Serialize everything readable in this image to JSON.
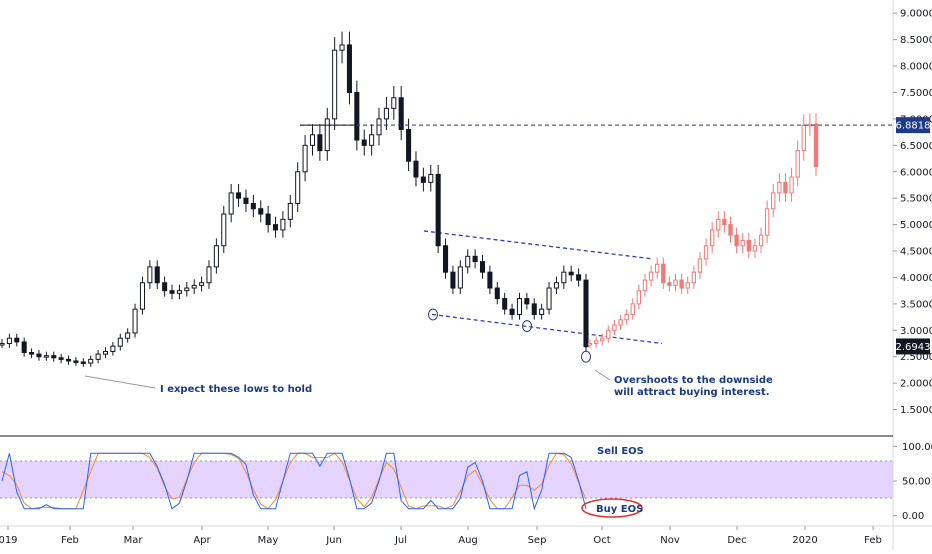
{
  "chart_data": {
    "type": "candlestick",
    "price_panel": {
      "ylim": [
        1.0,
        9.25
      ],
      "y_ticks": [
        "9.0000",
        "8.5000",
        "8.0000",
        "7.5000",
        "7.0000",
        "6.5000",
        "6.0000",
        "5.5000",
        "5.0000",
        "4.5000",
        "4.0000",
        "3.5000",
        "3.0000",
        "2.5000",
        "2.0000",
        "1.5000"
      ],
      "current_price_label": "2.6943",
      "target_price_label": "6.8818",
      "target_price": 6.8818,
      "current_price": 2.6943,
      "actual_series": [
        2.75,
        2.85,
        2.78,
        2.58,
        2.55,
        2.5,
        2.52,
        2.48,
        2.45,
        2.42,
        2.4,
        2.38,
        2.45,
        2.55,
        2.6,
        2.7,
        2.85,
        2.95,
        3.4,
        3.9,
        4.2,
        3.9,
        3.75,
        3.7,
        3.75,
        3.8,
        3.85,
        3.9,
        4.2,
        4.6,
        5.2,
        5.6,
        5.5,
        5.4,
        5.3,
        5.2,
        5.0,
        4.9,
        5.1,
        5.4,
        6.0,
        6.5,
        6.7,
        6.4,
        7.0,
        8.3,
        8.4,
        7.5,
        6.6,
        6.5,
        6.7,
        7.0,
        7.2,
        7.4,
        6.8,
        6.2,
        5.9,
        5.8,
        5.95,
        4.6,
        4.1,
        3.8,
        4.2,
        4.4,
        4.3,
        4.1,
        3.8,
        3.6,
        3.4,
        3.3,
        3.6,
        3.5,
        3.3,
        3.4,
        3.8,
        3.9,
        4.1,
        4.05,
        3.95,
        2.69
      ],
      "projected_series": [
        2.75,
        2.8,
        2.85,
        3.0,
        3.1,
        3.2,
        3.3,
        3.5,
        3.75,
        3.95,
        4.1,
        4.25,
        3.9,
        3.85,
        3.95,
        3.8,
        3.9,
        4.1,
        4.35,
        4.6,
        4.9,
        5.1,
        5.0,
        4.8,
        4.6,
        4.7,
        4.5,
        4.6,
        4.8,
        5.3,
        5.6,
        5.8,
        5.6,
        5.9,
        6.4,
        6.88,
        6.9,
        6.1
      ],
      "actual_color": "#131722",
      "projected_color": "#f07a7a",
      "channel_color": "#2e3fbf",
      "annotations": [
        {
          "text_lines": [
            "I expect these lows to hold"
          ]
        },
        {
          "text_lines": [
            "Overshoots to the downside",
            "will attract buying interest."
          ]
        }
      ]
    },
    "oscillator_panel": {
      "ylim": [
        -0.15,
        1.15
      ],
      "y_ticks": [
        "100.00",
        "50.00",
        "0.00"
      ],
      "band": [
        0.2,
        0.8
      ],
      "band_color": "#e1ccff",
      "k_color": "#2962ff",
      "d_color": "#f48c2b",
      "labels": [
        "Sell EOS",
        "Buy EOS"
      ]
    },
    "x_ticks": [
      "019",
      "Feb",
      "Mar",
      "Apr",
      "May",
      "Jun",
      "Jul",
      "Aug",
      "Sep",
      "Oct",
      "Nov",
      "Dec",
      "2020",
      "Feb"
    ]
  }
}
